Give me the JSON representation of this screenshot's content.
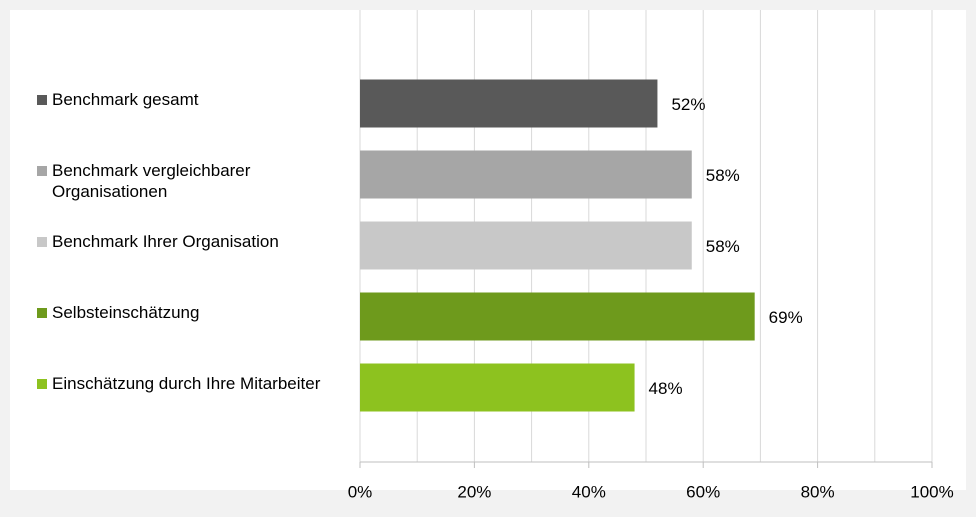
{
  "chart_data": {
    "type": "bar",
    "orientation": "horizontal",
    "categories": [
      "Benchmark gesamt",
      "Benchmark vergleichbarer Organisationen",
      "Benchmark Ihrer Organisation",
      "Selbsteinschätzung",
      "Einschätzung durch Ihre Mitarbeiter"
    ],
    "values": [
      52,
      58,
      58,
      69,
      48
    ],
    "value_labels": [
      "52%",
      "58%",
      "58%",
      "69%",
      "48%"
    ],
    "colors": [
      "#595959",
      "#a6a6a6",
      "#c8c8c8",
      "#6e9a1c",
      "#8dc21f"
    ],
    "xlim": [
      0,
      100
    ],
    "xticks": [
      {
        "value": 0,
        "label": "0%"
      },
      {
        "value": 20,
        "label": "20%"
      },
      {
        "value": 40,
        "label": "40%"
      },
      {
        "value": 60,
        "label": "60%"
      },
      {
        "value": 80,
        "label": "80%"
      },
      {
        "value": 100,
        "label": "100%"
      }
    ],
    "xminor": [
      10,
      30,
      50,
      70,
      90
    ],
    "grid": true
  }
}
